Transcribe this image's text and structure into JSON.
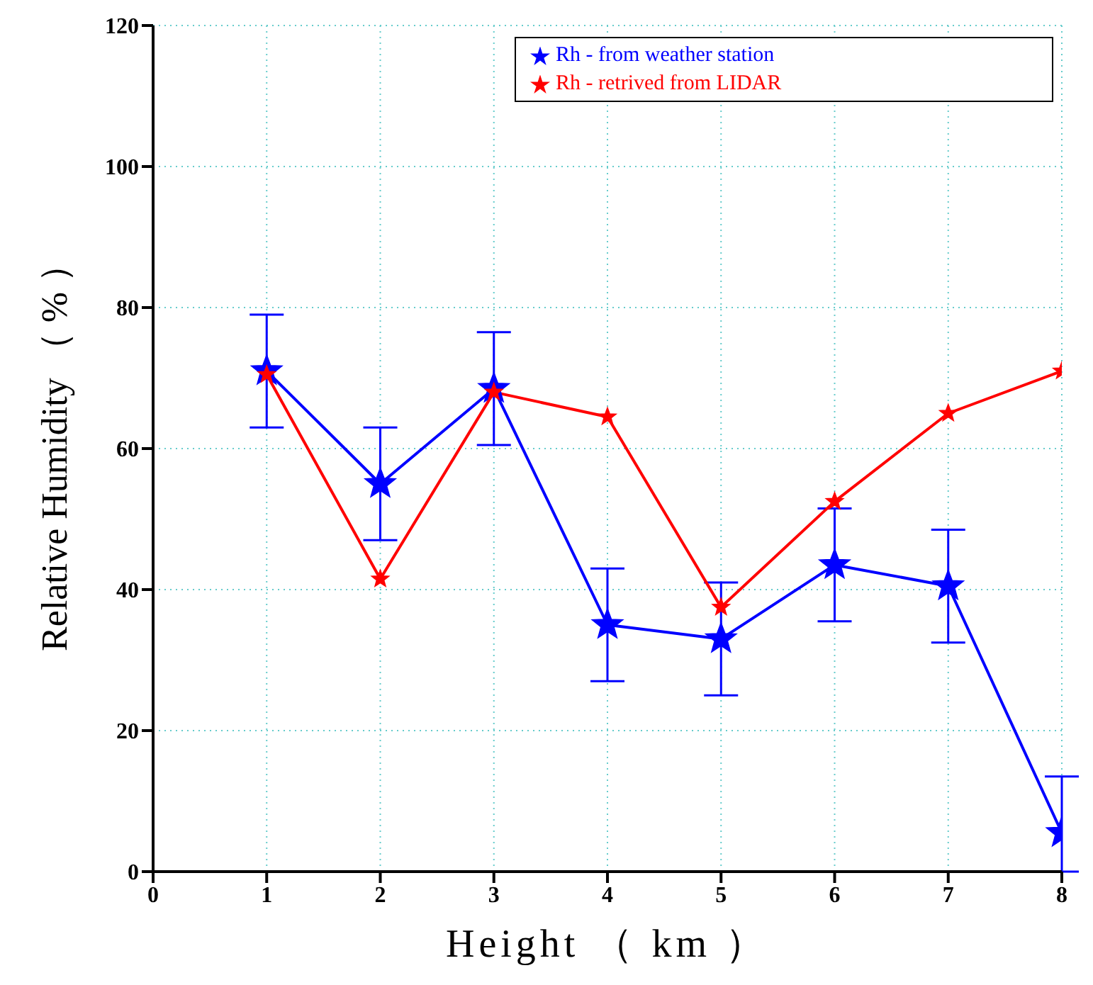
{
  "chart_data": {
    "type": "line",
    "xlabel": "Height （ km ）",
    "ylabel": "Relative Humidity （ % ）",
    "x": [
      1,
      2,
      3,
      4,
      5,
      6,
      7,
      8
    ],
    "series": [
      {
        "name": "Rh - from weather station",
        "color": "#0000ff",
        "values": [
          71,
          55,
          68.5,
          35,
          33,
          43.5,
          40.5,
          5.5
        ],
        "errors": [
          8,
          8,
          8,
          8,
          8,
          8,
          8,
          [
            0,
            13.5
          ]
        ]
      },
      {
        "name": "Rh - retrived from  LIDAR",
        "color": "#ff0000",
        "values": [
          70.5,
          41.5,
          68,
          64.5,
          37.5,
          52.5,
          65,
          71
        ]
      }
    ],
    "xlim": [
      0,
      8
    ],
    "xticks": [
      0,
      1,
      2,
      3,
      4,
      5,
      6,
      7,
      8
    ],
    "ylim": [
      0,
      120
    ],
    "yticks": [
      0,
      20,
      40,
      60,
      80,
      100,
      120
    ],
    "grid": true,
    "legend": "top right",
    "marker": "star",
    "line_style": "solid"
  }
}
